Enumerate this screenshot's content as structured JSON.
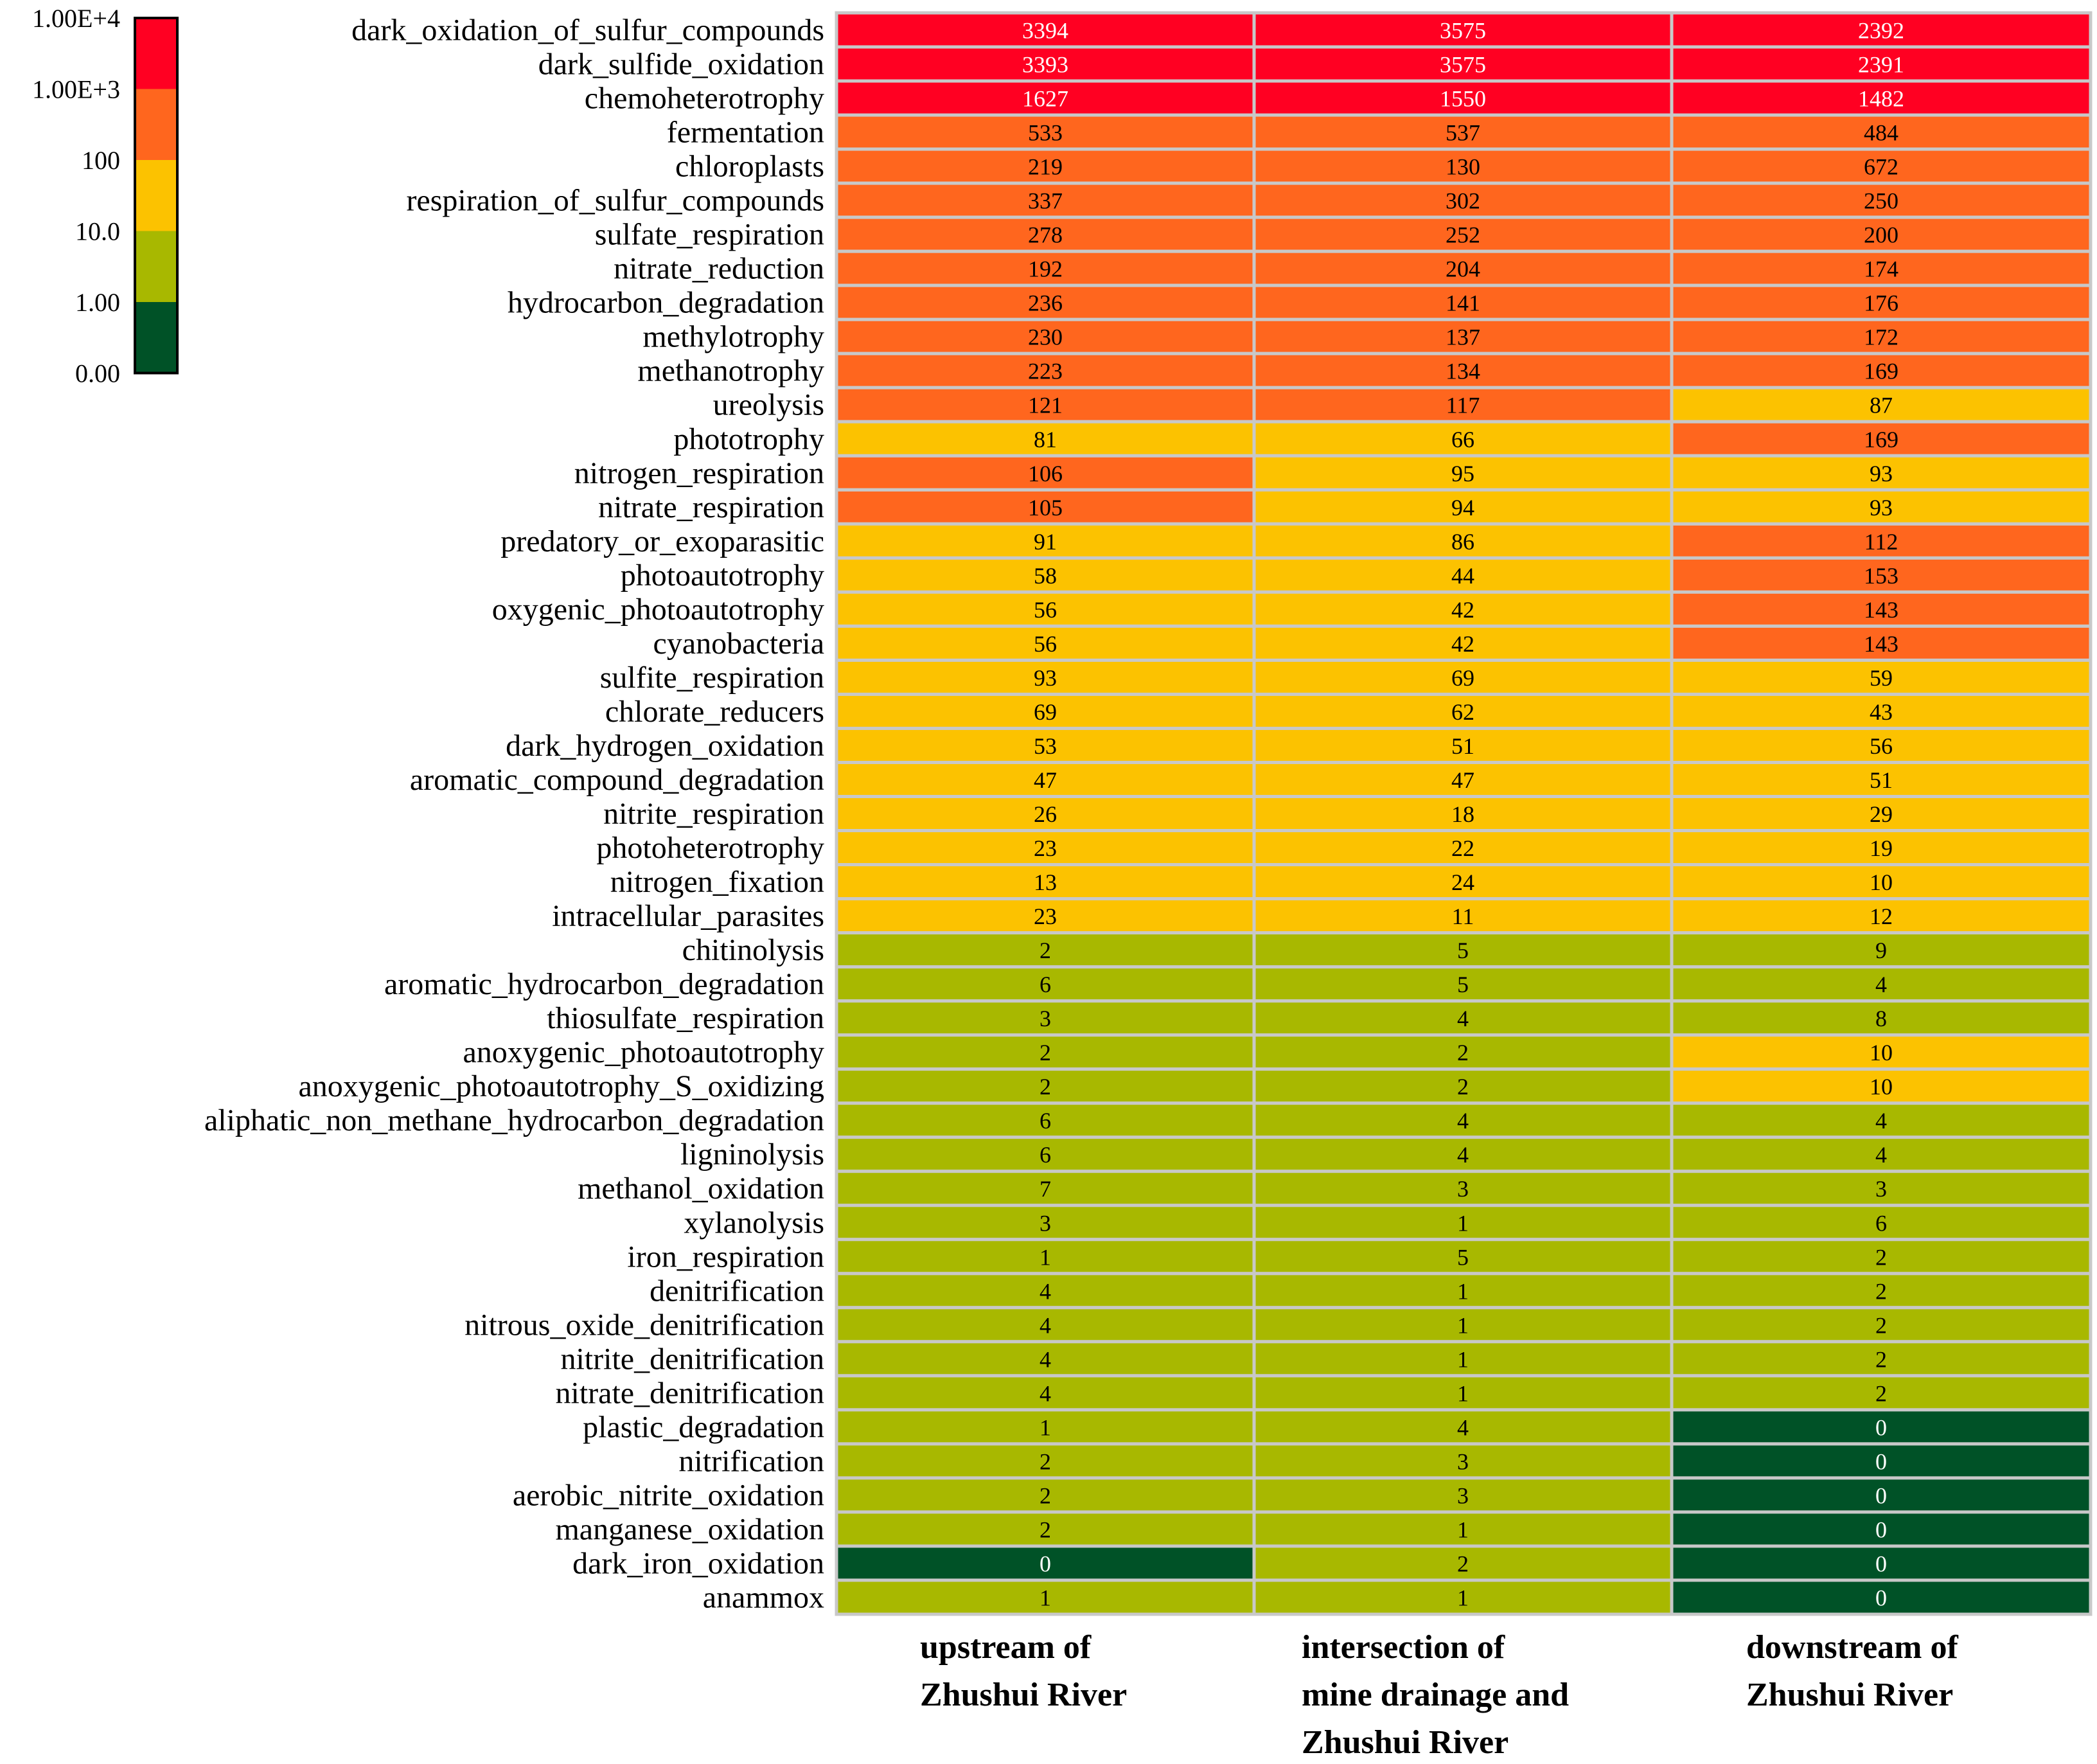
{
  "chart_data": {
    "type": "heatmap",
    "title": "",
    "columns": [
      [
        "upstream of",
        "Zhushui River"
      ],
      [
        "intersection of",
        "mine drainage and",
        "Zhushui River"
      ],
      [
        "downstream of",
        "Zhushui River"
      ]
    ],
    "rows": [
      "dark_oxidation_of_sulfur_compounds",
      "dark_sulfide_oxidation",
      "chemoheterotrophy",
      "fermentation",
      "chloroplasts",
      "respiration_of_sulfur_compounds",
      "sulfate_respiration",
      "nitrate_reduction",
      "hydrocarbon_degradation",
      "methylotrophy",
      "methanotrophy",
      "ureolysis",
      "phototrophy",
      "nitrogen_respiration",
      "nitrate_respiration",
      "predatory_or_exoparasitic",
      "photoautotrophy",
      "oxygenic_photoautotrophy",
      "cyanobacteria",
      "sulfite_respiration",
      "chlorate_reducers",
      "dark_hydrogen_oxidation",
      "aromatic_compound_degradation",
      "nitrite_respiration",
      "photoheterotrophy",
      "nitrogen_fixation",
      "intracellular_parasites",
      "chitinolysis",
      "aromatic_hydrocarbon_degradation",
      "thiosulfate_respiration",
      "anoxygenic_photoautotrophy",
      "anoxygenic_photoautotrophy_S_oxidizing",
      "aliphatic_non_methane_hydrocarbon_degradation",
      "ligninolysis",
      "methanol_oxidation",
      "xylanolysis",
      "iron_respiration",
      "denitrification",
      "nitrous_oxide_denitrification",
      "nitrite_denitrification",
      "nitrate_denitrification",
      "plastic_degradation",
      "nitrification",
      "aerobic_nitrite_oxidation",
      "manganese_oxidation",
      "dark_iron_oxidation",
      "anammox"
    ],
    "values": [
      [
        3394,
        3575,
        2392
      ],
      [
        3393,
        3575,
        2391
      ],
      [
        1627,
        1550,
        1482
      ],
      [
        533,
        537,
        484
      ],
      [
        219,
        130,
        672
      ],
      [
        337,
        302,
        250
      ],
      [
        278,
        252,
        200
      ],
      [
        192,
        204,
        174
      ],
      [
        236,
        141,
        176
      ],
      [
        230,
        137,
        172
      ],
      [
        223,
        134,
        169
      ],
      [
        121,
        117,
        87
      ],
      [
        81,
        66,
        169
      ],
      [
        106,
        95,
        93
      ],
      [
        105,
        94,
        93
      ],
      [
        91,
        86,
        112
      ],
      [
        58,
        44,
        153
      ],
      [
        56,
        42,
        143
      ],
      [
        56,
        42,
        143
      ],
      [
        93,
        69,
        59
      ],
      [
        69,
        62,
        43
      ],
      [
        53,
        51,
        56
      ],
      [
        47,
        47,
        51
      ],
      [
        26,
        18,
        29
      ],
      [
        23,
        22,
        19
      ],
      [
        13,
        24,
        10
      ],
      [
        23,
        11,
        12
      ],
      [
        2,
        5,
        9
      ],
      [
        6,
        5,
        4
      ],
      [
        3,
        4,
        8
      ],
      [
        2,
        2,
        10
      ],
      [
        2,
        2,
        10
      ],
      [
        6,
        4,
        4
      ],
      [
        6,
        4,
        4
      ],
      [
        7,
        3,
        3
      ],
      [
        3,
        1,
        6
      ],
      [
        1,
        5,
        2
      ],
      [
        4,
        1,
        2
      ],
      [
        4,
        1,
        2
      ],
      [
        4,
        1,
        2
      ],
      [
        4,
        1,
        2
      ],
      [
        1,
        4,
        0
      ],
      [
        2,
        3,
        0
      ],
      [
        2,
        3,
        0
      ],
      [
        2,
        1,
        0
      ],
      [
        0,
        2,
        0
      ],
      [
        1,
        1,
        0
      ]
    ],
    "legend": {
      "labels": [
        "1.00E+4",
        "1.00E+3",
        "100",
        "10.0",
        "1.00",
        "0.00"
      ],
      "bands": [
        {
          "min": 1000,
          "color": "#ff0022"
        },
        {
          "min": 100,
          "color": "#ff661e"
        },
        {
          "min": 10,
          "color": "#fcc200"
        },
        {
          "min": 1,
          "color": "#a8b800"
        },
        {
          "min": 0,
          "color": "#005227"
        }
      ]
    },
    "colors": {
      "grid_line": "#c8c8c8",
      "text_light": "#ffffff",
      "text_dark": "#000000"
    }
  }
}
